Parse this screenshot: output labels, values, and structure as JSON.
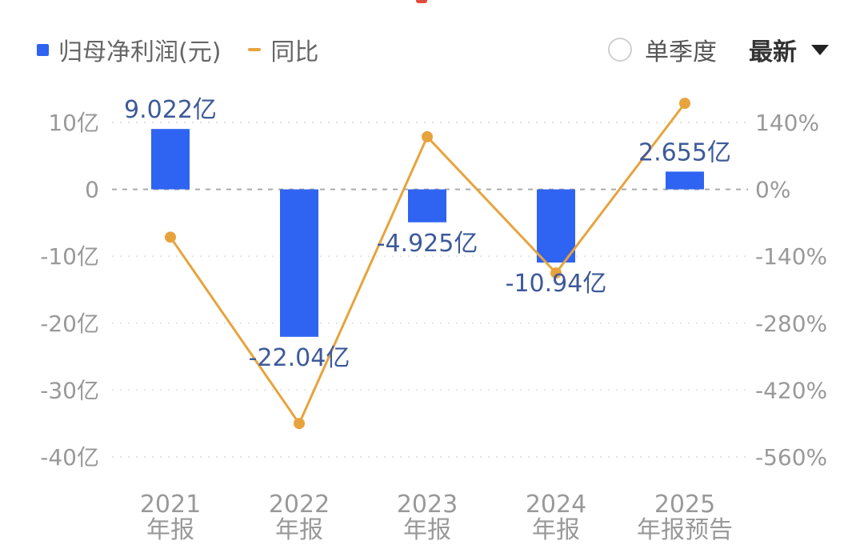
{
  "legend": {
    "bar_label": "归母净利润(元)",
    "line_label": "同比"
  },
  "controls": {
    "single_quarter_label": "单季度",
    "latest_label": "最新"
  },
  "colors": {
    "bar": "#2f64f2",
    "line": "#e8a33d",
    "grid": "#e3e3e3",
    "zero": "#aaaaaa"
  },
  "chart_data": {
    "type": "bar",
    "categories": [
      [
        "2021",
        "年报"
      ],
      [
        "2022",
        "年报"
      ],
      [
        "2023",
        "年报"
      ],
      [
        "2024",
        "年报"
      ],
      [
        "2025",
        "年报预告"
      ]
    ],
    "series": [
      {
        "name": "归母净利润(元)",
        "type": "bar",
        "axis": "left",
        "unit": "亿",
        "values": [
          9.022,
          -22.04,
          -4.925,
          -10.94,
          2.655
        ],
        "labels": [
          "9.022亿",
          "-22.04亿",
          "-4.925亿",
          "-10.94亿",
          "2.655亿"
        ]
      },
      {
        "name": "同比",
        "type": "line",
        "axis": "right",
        "unit": "%",
        "values": [
          -100,
          -490,
          110,
          -175,
          180
        ]
      }
    ],
    "y_left": {
      "ylim": [
        -40,
        10
      ],
      "ticks": [
        10,
        0,
        -10,
        -20,
        -30,
        -40
      ],
      "tick_labels": [
        "10亿",
        "0",
        "-10亿",
        "-20亿",
        "-30亿",
        "-40亿"
      ]
    },
    "y_right": {
      "ylim": [
        -560,
        140
      ],
      "ticks": [
        140,
        0,
        -140,
        -280,
        -420,
        -560
      ],
      "tick_labels": [
        "140%",
        "0%",
        "-140%",
        "-280%",
        "-420%",
        "-560%"
      ]
    },
    "grid": true,
    "legend_position": "top-left"
  }
}
